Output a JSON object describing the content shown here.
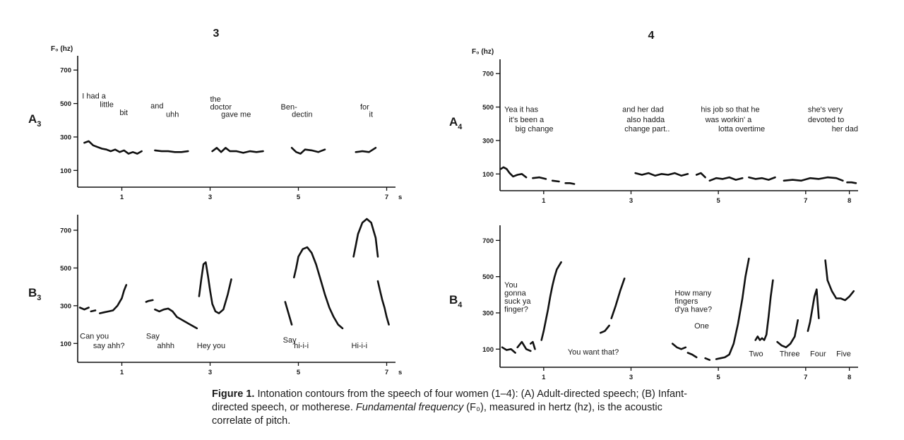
{
  "caption": {
    "label": "Figure 1.",
    "part1": " Intonation contours from the speech of four women (1–4): (A) Adult-directed speech; (B) Infant-directed speech, or motherese. ",
    "part2": "Fundamental frequency",
    "part3": " (F₀), measured in hertz (hz), is the acoustic correlate of pitch."
  },
  "chart_data": [
    {
      "type": "line",
      "column_header": "3",
      "panel_label": "A",
      "panel_sub": "3",
      "ylabel": "F₀ (hz)",
      "ylim": [
        0,
        760
      ],
      "yticks": [
        100,
        300,
        500,
        700
      ],
      "xlim": [
        0,
        7.2
      ],
      "xticks": [
        "1",
        "3",
        "5",
        "7"
      ],
      "xtick_values": [
        1,
        3,
        5,
        7
      ],
      "xunit": "s",
      "series": [
        {
          "x": [
            0.15,
            0.25,
            0.35,
            0.45,
            0.55,
            0.65,
            0.75,
            0.85,
            0.95,
            1.05,
            1.15,
            1.25,
            1.35,
            1.45
          ],
          "y": [
            265,
            275,
            250,
            240,
            230,
            225,
            215,
            225,
            210,
            220,
            200,
            210,
            200,
            215
          ]
        },
        {
          "x": [
            1.75,
            1.9,
            2.05,
            2.2,
            2.35,
            2.5
          ],
          "y": [
            220,
            215,
            215,
            210,
            210,
            215
          ]
        },
        {
          "x": [
            3.05,
            3.15,
            3.25,
            3.35,
            3.45,
            3.6,
            3.75,
            3.9,
            4.05,
            4.2
          ],
          "y": [
            215,
            235,
            210,
            235,
            215,
            215,
            205,
            215,
            210,
            215
          ]
        },
        {
          "x": [
            4.85,
            4.95,
            5.05,
            5.15,
            5.3,
            5.45,
            5.6
          ],
          "y": [
            235,
            210,
            200,
            225,
            220,
            210,
            225
          ]
        },
        {
          "x": [
            6.3,
            6.45,
            6.6,
            6.75
          ],
          "y": [
            210,
            215,
            210,
            235
          ]
        }
      ],
      "annotations": [
        {
          "text": "I had a",
          "x": 0.1,
          "y": 530,
          "anchor": "start"
        },
        {
          "text": "little",
          "x": 0.5,
          "y": 480,
          "anchor": "start"
        },
        {
          "text": "bit",
          "x": 0.95,
          "y": 430,
          "anchor": "start"
        },
        {
          "text": "and",
          "x": 1.65,
          "y": 470,
          "anchor": "start"
        },
        {
          "text": "uhh",
          "x": 2.0,
          "y": 420,
          "anchor": "start"
        },
        {
          "text": "the",
          "x": 3.0,
          "y": 510,
          "anchor": "start"
        },
        {
          "text": "doctor",
          "x": 3.0,
          "y": 465,
          "anchor": "start"
        },
        {
          "text": "gave me",
          "x": 3.25,
          "y": 420,
          "anchor": "start"
        },
        {
          "text": "Ben-",
          "x": 4.6,
          "y": 465,
          "anchor": "start"
        },
        {
          "text": "dectin",
          "x": 4.85,
          "y": 420,
          "anchor": "start"
        },
        {
          "text": "for",
          "x": 6.4,
          "y": 465,
          "anchor": "start"
        },
        {
          "text": "it",
          "x": 6.6,
          "y": 420,
          "anchor": "start"
        }
      ]
    },
    {
      "type": "line",
      "column_header": "4",
      "panel_label": "A",
      "panel_sub": "4",
      "ylabel": "F₀ (hz)",
      "ylim": [
        0,
        760
      ],
      "yticks": [
        100,
        300,
        500,
        700
      ],
      "xlim": [
        0,
        8.2
      ],
      "xticks": [
        "1",
        "3",
        "5",
        "7",
        "8"
      ],
      "xtick_values": [
        1,
        3,
        5,
        7,
        8
      ],
      "xunit": "",
      "series": [
        {
          "x": [
            0.02,
            0.08,
            0.15,
            0.22,
            0.3,
            0.4,
            0.5,
            0.6
          ],
          "y": [
            130,
            140,
            130,
            105,
            85,
            95,
            100,
            80
          ]
        },
        {
          "x": [
            0.75,
            0.9,
            1.05
          ],
          "y": [
            75,
            80,
            70
          ]
        },
        {
          "x": [
            1.2,
            1.35
          ],
          "y": [
            60,
            55
          ]
        },
        {
          "x": [
            1.5,
            1.6,
            1.7
          ],
          "y": [
            45,
            45,
            40
          ]
        },
        {
          "x": [
            3.1,
            3.25,
            3.4,
            3.55,
            3.7,
            3.85,
            4.0,
            4.15,
            4.3
          ],
          "y": [
            105,
            95,
            105,
            90,
            100,
            95,
            105,
            90,
            100
          ]
        },
        {
          "x": [
            4.5,
            4.6,
            4.7
          ],
          "y": [
            95,
            105,
            80
          ]
        },
        {
          "x": [
            4.8,
            4.95,
            5.1,
            5.25,
            5.4,
            5.55
          ],
          "y": [
            60,
            75,
            70,
            80,
            65,
            75
          ]
        },
        {
          "x": [
            5.7,
            5.85,
            6.0,
            6.15,
            6.3
          ],
          "y": [
            80,
            70,
            75,
            65,
            80
          ]
        },
        {
          "x": [
            6.5,
            6.7,
            6.9,
            7.1,
            7.3,
            7.5,
            7.7,
            7.85
          ],
          "y": [
            60,
            65,
            60,
            75,
            70,
            80,
            75,
            60
          ]
        },
        {
          "x": [
            7.95,
            8.05,
            8.15
          ],
          "y": [
            50,
            50,
            45
          ]
        }
      ],
      "annotations": [
        {
          "text": "Yea it has",
          "x": 0.1,
          "y": 470,
          "anchor": "start"
        },
        {
          "text": "it's been a",
          "x": 0.2,
          "y": 410,
          "anchor": "start"
        },
        {
          "text": "big change",
          "x": 0.35,
          "y": 355,
          "anchor": "start"
        },
        {
          "text": "and her dad",
          "x": 2.8,
          "y": 470,
          "anchor": "start"
        },
        {
          "text": "also hadda",
          "x": 2.9,
          "y": 410,
          "anchor": "start"
        },
        {
          "text": "change part..",
          "x": 2.85,
          "y": 355,
          "anchor": "start"
        },
        {
          "text": "his job so that he",
          "x": 4.6,
          "y": 470,
          "anchor": "start"
        },
        {
          "text": "was workin' a",
          "x": 4.7,
          "y": 410,
          "anchor": "start"
        },
        {
          "text": "lotta overtime",
          "x": 5.0,
          "y": 355,
          "anchor": "start"
        },
        {
          "text": "she's very",
          "x": 7.05,
          "y": 470,
          "anchor": "start"
        },
        {
          "text": "devoted to",
          "x": 7.05,
          "y": 410,
          "anchor": "start"
        },
        {
          "text": "her dad",
          "x": 8.2,
          "y": 355,
          "anchor": "end"
        }
      ]
    },
    {
      "type": "line",
      "column_header": "",
      "panel_label": "B",
      "panel_sub": "3",
      "ylabel": "",
      "ylim": [
        0,
        760
      ],
      "yticks": [
        100,
        300,
        500,
        700
      ],
      "xlim": [
        0,
        7.2
      ],
      "xticks": [
        "1",
        "3",
        "5",
        "7"
      ],
      "xtick_values": [
        1,
        3,
        5,
        7
      ],
      "xunit": "s",
      "series": [
        {
          "x": [
            0.05,
            0.15,
            0.25
          ],
          "y": [
            290,
            280,
            290
          ]
        },
        {
          "x": [
            0.3,
            0.4
          ],
          "y": [
            270,
            275
          ]
        },
        {
          "x": [
            0.5,
            0.6,
            0.7,
            0.8,
            0.9,
            1.0,
            1.05,
            1.1
          ],
          "y": [
            260,
            265,
            270,
            275,
            300,
            340,
            380,
            410
          ]
        },
        {
          "x": [
            1.55,
            1.6,
            1.7
          ],
          "y": [
            320,
            325,
            330
          ]
        },
        {
          "x": [
            1.75,
            1.85,
            1.95,
            2.05,
            2.15,
            2.25,
            2.4,
            2.55,
            2.7
          ],
          "y": [
            280,
            270,
            280,
            285,
            270,
            240,
            220,
            200,
            180
          ]
        },
        {
          "x": [
            2.75,
            2.8,
            2.85,
            2.9,
            2.95,
            3.0,
            3.05,
            3.12,
            3.2,
            3.3,
            3.4,
            3.48
          ],
          "y": [
            350,
            440,
            520,
            530,
            460,
            380,
            310,
            270,
            260,
            280,
            360,
            440
          ]
        },
        {
          "x": [
            4.7,
            4.75,
            4.8,
            4.85
          ],
          "y": [
            320,
            280,
            240,
            200
          ]
        },
        {
          "x": [
            4.9,
            4.95,
            5.0,
            5.1,
            5.2,
            5.3,
            5.4,
            5.5,
            5.6,
            5.7,
            5.8,
            5.9,
            6.0
          ],
          "y": [
            450,
            500,
            560,
            600,
            610,
            580,
            520,
            440,
            360,
            290,
            240,
            200,
            180
          ]
        },
        {
          "x": [
            6.25,
            6.3,
            6.35,
            6.45,
            6.55,
            6.65,
            6.75,
            6.8
          ],
          "y": [
            560,
            620,
            680,
            740,
            760,
            740,
            660,
            560
          ]
        },
        {
          "x": [
            6.8,
            6.85,
            6.9,
            6.95,
            7.0,
            7.05
          ],
          "y": [
            430,
            380,
            330,
            290,
            240,
            200
          ]
        }
      ],
      "annotations": [
        {
          "text": "Can you",
          "x": 0.05,
          "y": 125,
          "anchor": "start"
        },
        {
          "text": "say ahh?",
          "x": 0.35,
          "y": 75,
          "anchor": "start"
        },
        {
          "text": "Say",
          "x": 1.55,
          "y": 125,
          "anchor": "start"
        },
        {
          "text": "ahhh",
          "x": 1.8,
          "y": 75,
          "anchor": "start"
        },
        {
          "text": "Hey you",
          "x": 2.7,
          "y": 75,
          "anchor": "start"
        },
        {
          "text": "Say",
          "x": 4.65,
          "y": 105,
          "anchor": "start"
        },
        {
          "text": "hi-i-i",
          "x": 4.9,
          "y": 75,
          "anchor": "start"
        },
        {
          "text": "Hi-i-i",
          "x": 6.2,
          "y": 75,
          "anchor": "start"
        }
      ]
    },
    {
      "type": "line",
      "column_header": "",
      "panel_label": "B",
      "panel_sub": "4",
      "ylabel": "",
      "ylim": [
        0,
        760
      ],
      "yticks": [
        100,
        300,
        500,
        700
      ],
      "xlim": [
        0,
        8.2
      ],
      "xticks": [
        "1",
        "3",
        "5",
        "7",
        "8"
      ],
      "xtick_values": [
        1,
        3,
        5,
        7,
        8
      ],
      "xunit": "",
      "series": [
        {
          "x": [
            0.05,
            0.15,
            0.25,
            0.35
          ],
          "y": [
            110,
            95,
            100,
            80
          ]
        },
        {
          "x": [
            0.4,
            0.5,
            0.6,
            0.7
          ],
          "y": [
            110,
            140,
            100,
            90
          ]
        },
        {
          "x": [
            0.7,
            0.75,
            0.8
          ],
          "y": [
            130,
            140,
            100
          ]
        },
        {
          "x": [
            0.95,
            1.0,
            1.05,
            1.1,
            1.15,
            1.2,
            1.25,
            1.3,
            1.35,
            1.4
          ],
          "y": [
            150,
            200,
            260,
            320,
            390,
            450,
            500,
            540,
            560,
            580
          ]
        },
        {
          "x": [
            2.3,
            2.4,
            2.5
          ],
          "y": [
            190,
            200,
            230
          ]
        },
        {
          "x": [
            2.55,
            2.65,
            2.75,
            2.85
          ],
          "y": [
            270,
            340,
            420,
            490
          ]
        },
        {
          "x": [
            3.95,
            4.05,
            4.15,
            4.25
          ],
          "y": [
            130,
            110,
            100,
            110
          ]
        },
        {
          "x": [
            4.3,
            4.4,
            4.5
          ],
          "y": [
            80,
            70,
            55
          ]
        },
        {
          "x": [
            4.7,
            4.8
          ],
          "y": [
            50,
            40
          ]
        },
        {
          "x": [
            4.95,
            5.05,
            5.15,
            5.25,
            5.35,
            5.45,
            5.55,
            5.62,
            5.7
          ],
          "y": [
            45,
            50,
            55,
            70,
            130,
            240,
            380,
            500,
            600
          ]
        },
        {
          "x": [
            5.85,
            5.9,
            5.95,
            6.0,
            6.05,
            6.1,
            6.15,
            6.2,
            6.25
          ],
          "y": [
            150,
            170,
            150,
            160,
            150,
            180,
            280,
            390,
            480
          ]
        },
        {
          "x": [
            6.35,
            6.45,
            6.55,
            6.65,
            6.75,
            6.82
          ],
          "y": [
            140,
            120,
            110,
            130,
            170,
            260
          ]
        },
        {
          "x": [
            7.05,
            7.1,
            7.15,
            7.2,
            7.25,
            7.3
          ],
          "y": [
            200,
            250,
            320,
            390,
            430,
            270
          ]
        },
        {
          "x": [
            7.45,
            7.5,
            7.6,
            7.7,
            7.8,
            7.9,
            8.0,
            8.1
          ],
          "y": [
            590,
            480,
            420,
            380,
            380,
            370,
            390,
            420
          ]
        }
      ],
      "annotations": [
        {
          "text": "You",
          "x": 0.1,
          "y": 440,
          "anchor": "start"
        },
        {
          "text": "gonna",
          "x": 0.1,
          "y": 395,
          "anchor": "start"
        },
        {
          "text": "suck ya",
          "x": 0.1,
          "y": 350,
          "anchor": "start"
        },
        {
          "text": "finger?",
          "x": 0.1,
          "y": 305,
          "anchor": "start"
        },
        {
          "text": "You want that?",
          "x": 1.55,
          "y": 70,
          "anchor": "start"
        },
        {
          "text": "How many",
          "x": 4.0,
          "y": 395,
          "anchor": "start"
        },
        {
          "text": "fingers",
          "x": 4.0,
          "y": 350,
          "anchor": "start"
        },
        {
          "text": "d'ya have?",
          "x": 4.0,
          "y": 305,
          "anchor": "start"
        },
        {
          "text": "One",
          "x": 4.45,
          "y": 215,
          "anchor": "start"
        },
        {
          "text": "Two",
          "x": 5.7,
          "y": 60,
          "anchor": "start"
        },
        {
          "text": "Three",
          "x": 6.4,
          "y": 60,
          "anchor": "start"
        },
        {
          "text": "Four",
          "x": 7.1,
          "y": 60,
          "anchor": "start"
        },
        {
          "text": "Five",
          "x": 7.7,
          "y": 60,
          "anchor": "start"
        }
      ]
    }
  ]
}
